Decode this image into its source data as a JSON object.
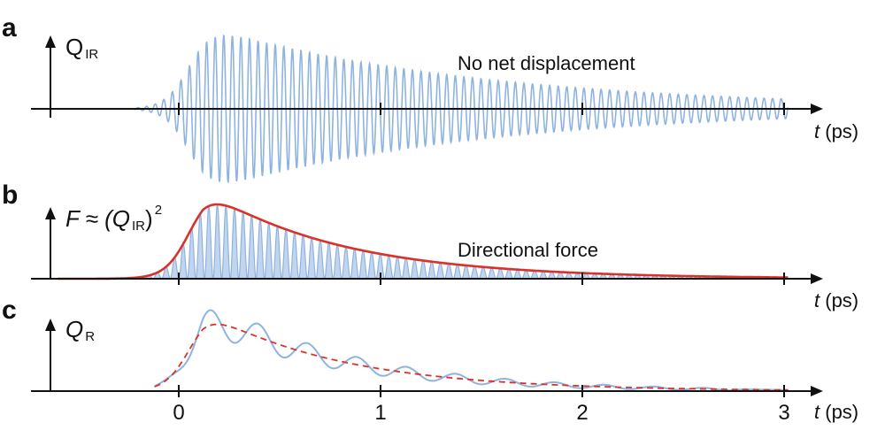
{
  "colors": {
    "oscillation": "#8fb3e0",
    "force": "#d9322a",
    "axis": "#111111"
  },
  "panels": [
    {
      "letter": "a",
      "ylabel_symbol": "Q",
      "ylabel_sub": "IR",
      "annotation": "No net displacement",
      "xlabel_var": "t",
      "xlabel_unit": " (ps)"
    },
    {
      "letter": "b",
      "ylabel_symbol": "F ≈ (Q",
      "ylabel_sub": "IR",
      "ylabel_close": ")",
      "ylabel_sup": "2",
      "annotation": "Directional force",
      "xlabel_var": "t",
      "xlabel_unit": " (ps)"
    },
    {
      "letter": "c",
      "ylabel_symbol": "Q",
      "ylabel_sub": "R",
      "xlabel_var": "t",
      "xlabel_unit": " (ps)"
    }
  ],
  "chart_data": [
    {
      "type": "line",
      "panel": "a",
      "description_series": "IR phonon oscillation Q_IR(t)",
      "xlim": [
        -0.6,
        3.1
      ],
      "xticks": [
        0,
        1,
        2,
        3
      ],
      "envelope": {
        "rise_center": 0.05,
        "rise_width": 0.06,
        "peak_amplitude": 1.0,
        "decay_time": 1.35
      },
      "oscillation_period_ps": 0.0425,
      "series": [
        {
          "name": "Q_IR",
          "color": "#8fb3e0",
          "style": "solid"
        }
      ],
      "grid": false
    },
    {
      "type": "area",
      "panel": "b",
      "xlim": [
        -0.6,
        3.1
      ],
      "xticks": [
        0,
        1,
        2,
        3
      ],
      "series": [
        {
          "name": "(Q_IR)^2 oscillating",
          "color": "#8fb3e0",
          "style": "fill"
        },
        {
          "name": "F envelope",
          "color": "#d9322a",
          "style": "solid",
          "rise_center": 0.05,
          "rise_width": 0.06,
          "decay_time": 0.68,
          "peak_amplitude": 1.0
        }
      ],
      "grid": false
    },
    {
      "type": "line",
      "panel": "c",
      "xlim": [
        -0.6,
        3.1
      ],
      "xticks": [
        0,
        1,
        2,
        3
      ],
      "xtick_labels": [
        "0",
        "1",
        "2",
        "3"
      ],
      "series": [
        {
          "name": "Q_R",
          "color": "#8fb3e0",
          "style": "solid",
          "baseline_decay_time": 0.68,
          "ripple_period_ps": 0.245,
          "ripple_amplitude": 0.22
        },
        {
          "name": "Q_R average",
          "color": "#d9322a",
          "style": "dashed",
          "rise_center": 0.05,
          "rise_width": 0.06,
          "decay_time": 0.68,
          "peak_amplitude": 0.82
        }
      ],
      "grid": false
    }
  ]
}
